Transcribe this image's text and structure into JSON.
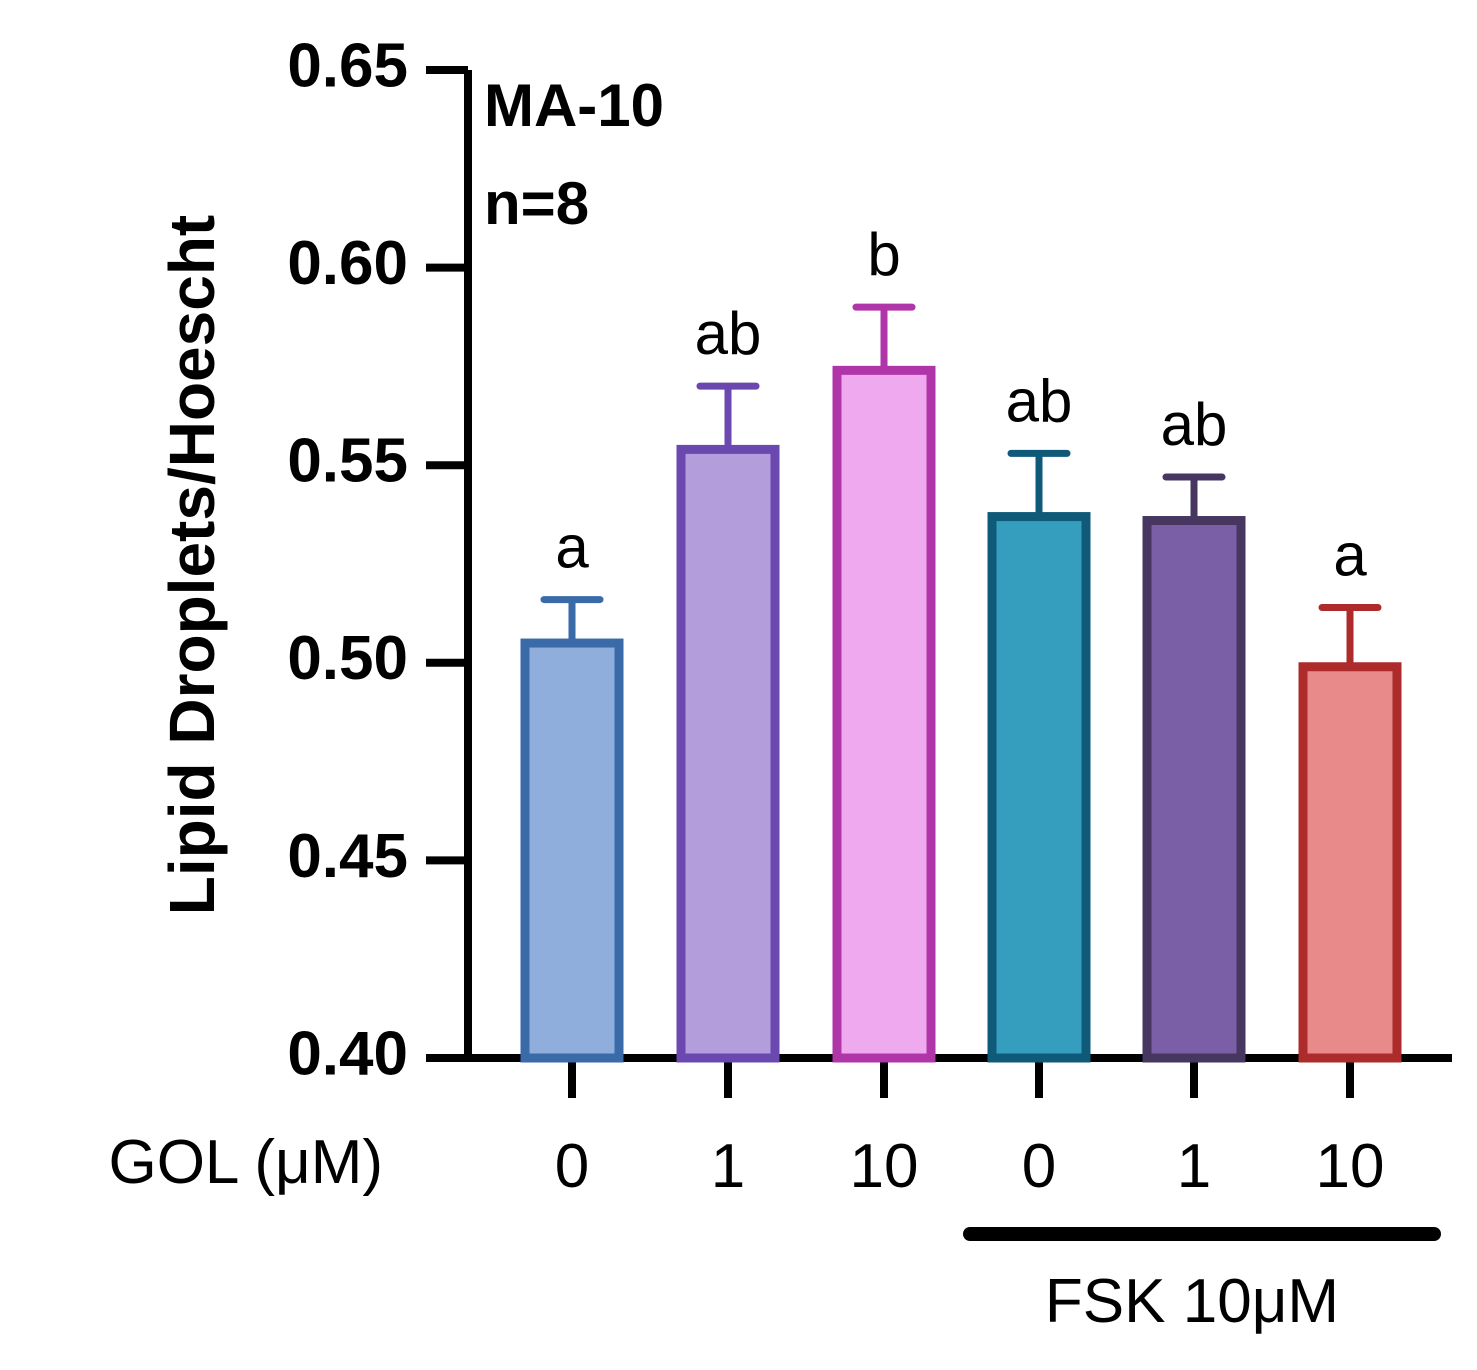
{
  "chart_data": {
    "type": "bar",
    "title": "",
    "annotations": [
      "MA-10",
      "n=8"
    ],
    "xlabel": "GOL (μM)",
    "ylabel": "Lipid Droplets/Hoescht",
    "ylim": [
      0.4,
      0.65
    ],
    "yticks": [
      "0.40",
      "0.45",
      "0.50",
      "0.55",
      "0.60",
      "0.65"
    ],
    "categories": [
      "0",
      "1",
      "10",
      "0",
      "1",
      "10"
    ],
    "values": [
      0.505,
      0.554,
      0.574,
      0.537,
      0.536,
      0.499
    ],
    "errors": [
      0.011,
      0.016,
      0.016,
      0.016,
      0.011,
      0.015
    ],
    "significance": [
      "a",
      "ab",
      "b",
      "ab",
      "ab",
      "a"
    ],
    "fill_colors": [
      "#8faedc",
      "#b39ddb",
      "#efaaef",
      "#359dbd",
      "#7a5fa6",
      "#e88a8a"
    ],
    "edge_colors": [
      "#3a6aa8",
      "#6a48b0",
      "#b035a8",
      "#0f5a78",
      "#463660",
      "#ad2b2b"
    ],
    "group": {
      "label": "FSK 10μM",
      "categories_index": [
        3,
        4,
        5
      ]
    },
    "grid": false,
    "legend": "none"
  }
}
